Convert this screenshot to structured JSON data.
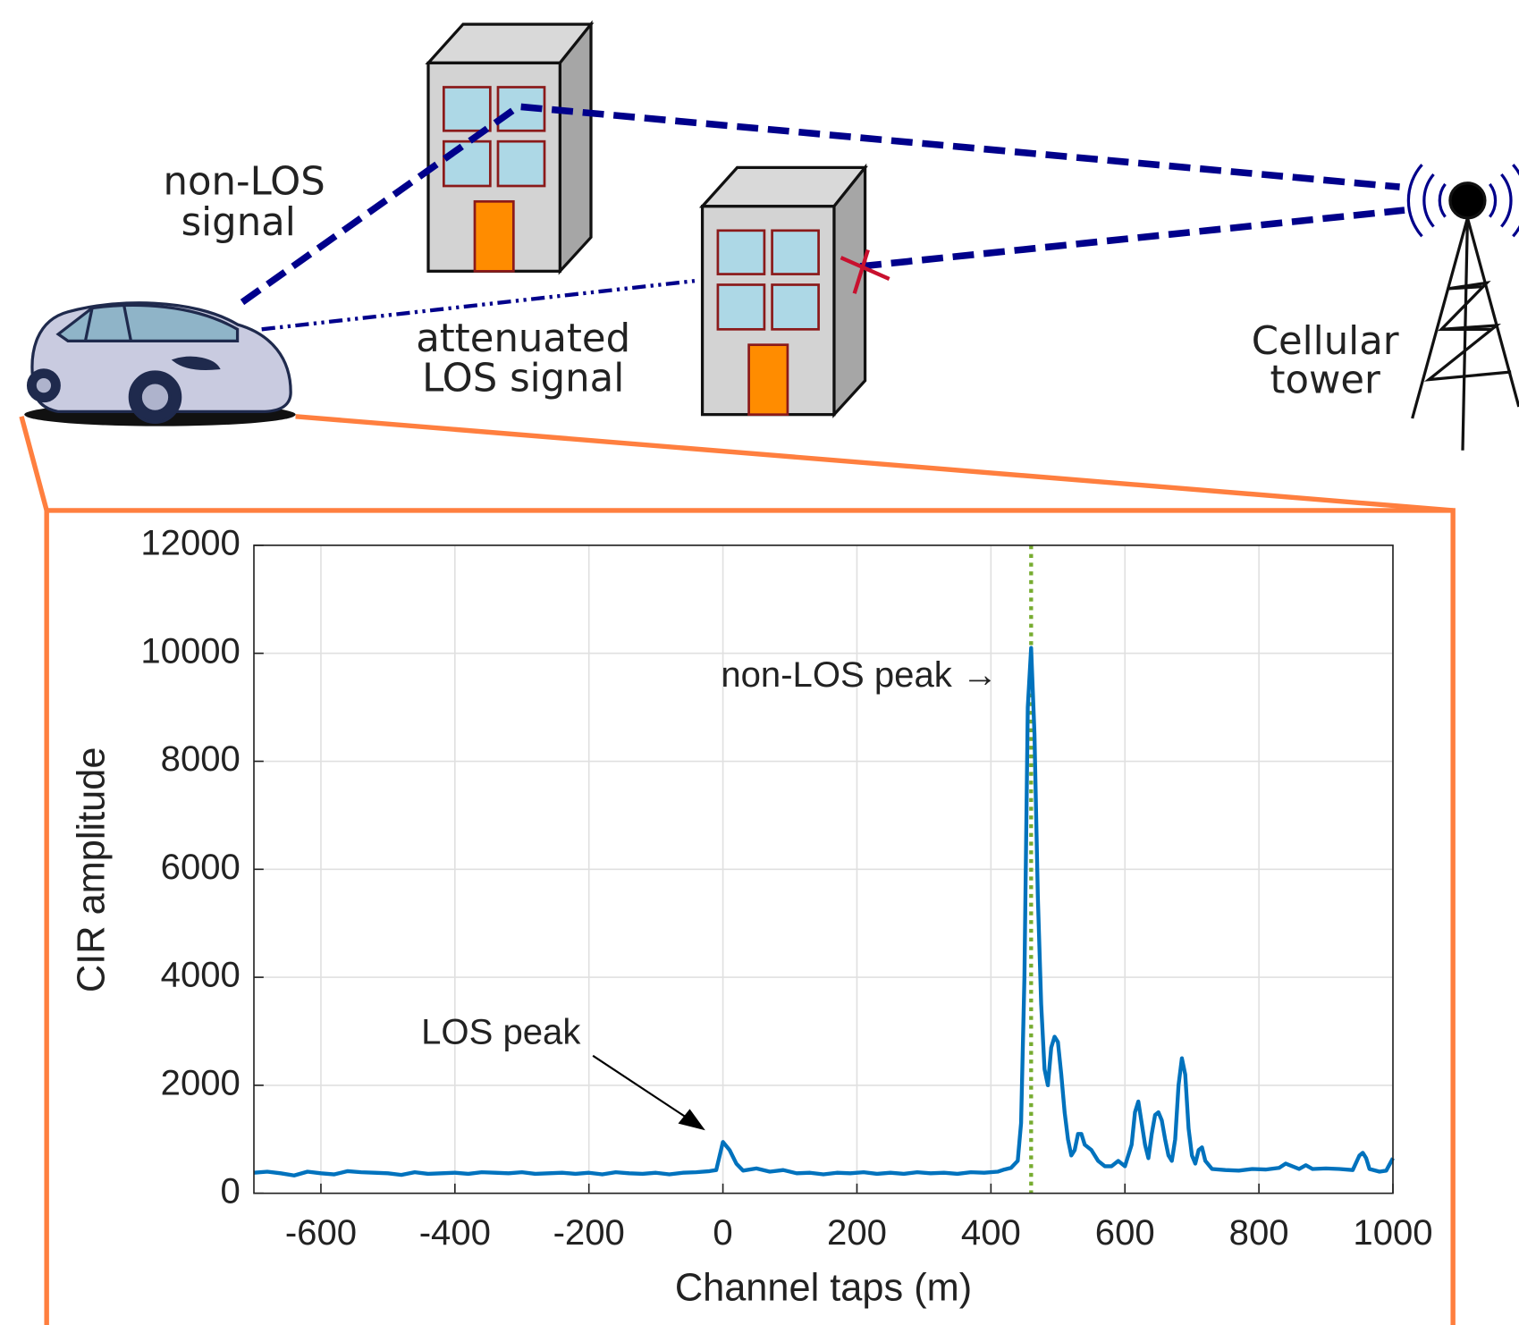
{
  "diagram": {
    "non_los_label": [
      "non-LOS",
      "signal"
    ],
    "los_label": [
      "attenuated",
      "LOS signal"
    ],
    "tower_label": [
      "Cellular",
      "tower"
    ]
  },
  "chart_data": {
    "type": "line",
    "xlabel": "Channel taps (m)",
    "ylabel": "CIR amplitude",
    "xlim": [
      -700,
      1000
    ],
    "ylim": [
      0,
      12000
    ],
    "xticks": [
      -600,
      -400,
      -200,
      0,
      200,
      400,
      600,
      800,
      1000
    ],
    "yticks": [
      0,
      2000,
      4000,
      6000,
      8000,
      10000,
      12000
    ],
    "grid": true,
    "annotations": [
      "non-LOS peak →",
      "LOS peak"
    ],
    "vline": {
      "x": 460,
      "color": "#77ac30"
    },
    "series": [
      {
        "color": "#0072bd",
        "x": [
          -700,
          -680,
          -660,
          -640,
          -620,
          -600,
          -580,
          -560,
          -540,
          -520,
          -500,
          -480,
          -460,
          -440,
          -420,
          -400,
          -380,
          -360,
          -340,
          -320,
          -300,
          -280,
          -260,
          -240,
          -220,
          -200,
          -180,
          -160,
          -140,
          -120,
          -100,
          -80,
          -60,
          -40,
          -20,
          -10,
          0,
          10,
          20,
          30,
          50,
          70,
          90,
          110,
          130,
          150,
          170,
          190,
          210,
          230,
          250,
          270,
          290,
          310,
          330,
          350,
          370,
          390,
          410,
          420,
          430,
          440,
          445,
          450,
          455,
          460,
          465,
          470,
          475,
          480,
          485,
          490,
          495,
          500,
          505,
          510,
          515,
          520,
          525,
          530,
          535,
          540,
          550,
          560,
          570,
          580,
          590,
          600,
          610,
          615,
          620,
          625,
          630,
          635,
          640,
          645,
          650,
          655,
          660,
          665,
          670,
          675,
          680,
          685,
          690,
          695,
          700,
          705,
          710,
          715,
          720,
          730,
          750,
          770,
          790,
          810,
          830,
          840,
          850,
          860,
          870,
          880,
          900,
          920,
          940,
          950,
          955,
          960,
          965,
          980,
          990,
          1000
        ],
        "values": [
          380,
          400,
          370,
          330,
          400,
          370,
          350,
          410,
          390,
          380,
          370,
          340,
          390,
          360,
          370,
          380,
          360,
          390,
          380,
          370,
          390,
          360,
          370,
          380,
          360,
          380,
          350,
          390,
          370,
          360,
          380,
          350,
          380,
          390,
          410,
          430,
          950,
          800,
          550,
          420,
          460,
          400,
          430,
          370,
          380,
          350,
          380,
          370,
          390,
          360,
          380,
          360,
          390,
          370,
          380,
          360,
          390,
          380,
          400,
          440,
          470,
          600,
          1300,
          4000,
          9000,
          10100,
          8500,
          5500,
          3500,
          2300,
          2000,
          2700,
          2900,
          2800,
          2200,
          1500,
          1000,
          700,
          800,
          1100,
          1100,
          900,
          800,
          600,
          500,
          500,
          600,
          500,
          900,
          1500,
          1700,
          1300,
          900,
          650,
          1100,
          1450,
          1500,
          1350,
          1000,
          700,
          600,
          1000,
          2000,
          2500,
          2200,
          1200,
          700,
          550,
          800,
          850,
          600,
          450,
          430,
          420,
          450,
          440,
          470,
          550,
          500,
          450,
          520,
          450,
          460,
          450,
          430,
          700,
          750,
          650,
          450,
          400,
          420,
          650
        ]
      }
    ]
  }
}
